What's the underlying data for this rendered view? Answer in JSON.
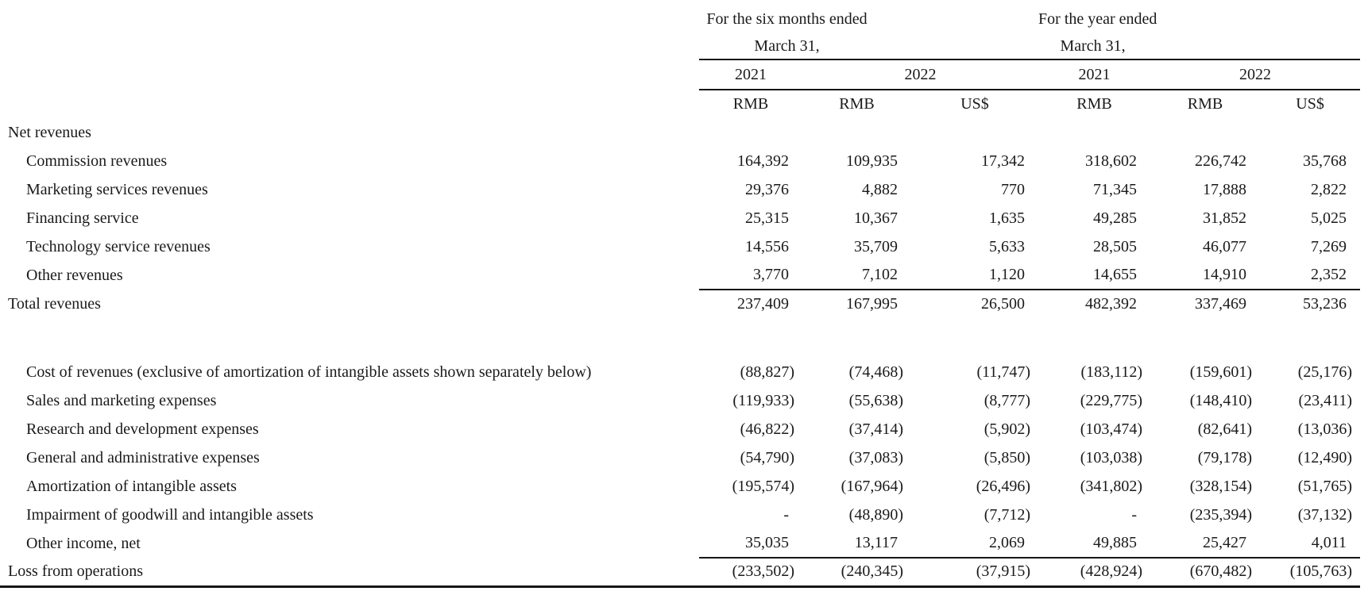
{
  "table": {
    "col_groups": [
      {
        "title_line1": "For the six months ended",
        "title_line2": "March 31,"
      },
      {
        "title_line1": "For the year ended",
        "title_line2": "March 31,"
      }
    ],
    "year_headers": [
      "2021",
      "2022",
      "2021",
      "2022"
    ],
    "currency_headers": [
      "RMB",
      "RMB",
      "US$",
      "RMB",
      "RMB",
      "US$"
    ],
    "rows": [
      {
        "label": "Net revenues",
        "values": []
      },
      {
        "label": "Commission revenues",
        "values": [
          "164,392",
          "109,935",
          "17,342",
          "318,602",
          "226,742",
          "35,768"
        ]
      },
      {
        "label": "Marketing services revenues",
        "values": [
          "29,376",
          "4,882",
          "770",
          "71,345",
          "17,888",
          "2,822"
        ]
      },
      {
        "label": "Financing service",
        "values": [
          "25,315",
          "10,367",
          "1,635",
          "49,285",
          "31,852",
          "5,025"
        ]
      },
      {
        "label": "Technology service revenues",
        "values": [
          "14,556",
          "35,709",
          "5,633",
          "28,505",
          "46,077",
          "7,269"
        ]
      },
      {
        "label": "Other revenues",
        "values": [
          "3,770",
          "7,102",
          "1,120",
          "14,655",
          "14,910",
          "2,352"
        ]
      },
      {
        "label": "Total revenues",
        "values": [
          "237,409",
          "167,995",
          "26,500",
          "482,392",
          "337,469",
          "53,236"
        ]
      },
      {
        "label": "Cost of revenues (exclusive of amortization of intangible assets shown separately below)",
        "values": [
          "(88,827)",
          "(74,468)",
          "(11,747)",
          "(183,112)",
          "(159,601)",
          "(25,176)"
        ]
      },
      {
        "label": "Sales and marketing expenses",
        "values": [
          "(119,933)",
          "(55,638)",
          "(8,777)",
          "(229,775)",
          "(148,410)",
          "(23,411)"
        ]
      },
      {
        "label": "Research and development expenses",
        "values": [
          "(46,822)",
          "(37,414)",
          "(5,902)",
          "(103,474)",
          "(82,641)",
          "(13,036)"
        ]
      },
      {
        "label": "General and administrative expenses",
        "values": [
          "(54,790)",
          "(37,083)",
          "(5,850)",
          "(103,038)",
          "(79,178)",
          "(12,490)"
        ]
      },
      {
        "label": "Amortization of intangible assets",
        "values": [
          "(195,574)",
          "(167,964)",
          "(26,496)",
          "(341,802)",
          "(328,154)",
          "(51,765)"
        ]
      },
      {
        "label": "Impairment of goodwill and intangible assets",
        "values": [
          "-",
          "(48,890)",
          "(7,712)",
          "-",
          "(235,394)",
          "(37,132)"
        ]
      },
      {
        "label": "Other income, net",
        "values": [
          "35,035",
          "13,117",
          "2,069",
          "49,885",
          "25,427",
          "4,011"
        ]
      },
      {
        "label": "Loss from operations",
        "values": [
          "(233,502)",
          "(240,345)",
          "(37,915)",
          "(428,924)",
          "(670,482)",
          "(105,763)"
        ]
      }
    ]
  }
}
